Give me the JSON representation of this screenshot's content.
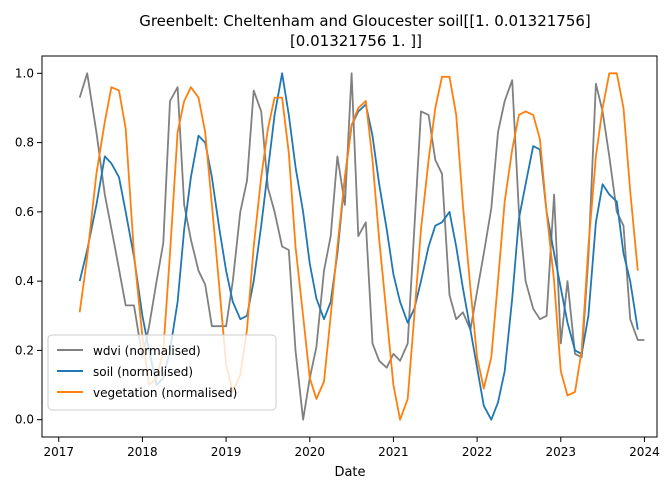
{
  "chart_data": {
    "type": "line",
    "title_line1": "Greenbelt: Cheltenham and Gloucester soil[[1.         0.01321756]",
    "title_line2": "[0.01321756 1.        ]]",
    "xlabel": "Date",
    "ylabel": "",
    "xlim": [
      2016.8,
      2024.15
    ],
    "ylim": [
      -0.05,
      1.05
    ],
    "x_ticks": [
      2017,
      2018,
      2019,
      2020,
      2021,
      2022,
      2023,
      2024
    ],
    "y_ticks": [
      0.0,
      0.2,
      0.4,
      0.6,
      0.8,
      1.0
    ],
    "grid": false,
    "legend_position": "lower-left",
    "series": [
      {
        "name": "wdvi (normalised)",
        "color": "#808080",
        "points": [
          [
            2017.25,
            0.93
          ],
          [
            2017.34,
            1.0
          ],
          [
            2017.45,
            0.83
          ],
          [
            2017.55,
            0.65
          ],
          [
            2017.67,
            0.5
          ],
          [
            2017.8,
            0.33
          ],
          [
            2017.9,
            0.33
          ],
          [
            2018.0,
            0.18
          ],
          [
            2018.08,
            0.27
          ],
          [
            2018.17,
            0.4
          ],
          [
            2018.25,
            0.51
          ],
          [
            2018.33,
            0.92
          ],
          [
            2018.42,
            0.96
          ],
          [
            2018.5,
            0.62
          ],
          [
            2018.58,
            0.52
          ],
          [
            2018.67,
            0.43
          ],
          [
            2018.75,
            0.39
          ],
          [
            2018.83,
            0.27
          ],
          [
            2018.92,
            0.27
          ],
          [
            2019.0,
            0.27
          ],
          [
            2019.08,
            0.4
          ],
          [
            2019.17,
            0.6
          ],
          [
            2019.25,
            0.69
          ],
          [
            2019.33,
            0.95
          ],
          [
            2019.42,
            0.89
          ],
          [
            2019.5,
            0.67
          ],
          [
            2019.58,
            0.6
          ],
          [
            2019.67,
            0.5
          ],
          [
            2019.75,
            0.49
          ],
          [
            2019.83,
            0.2
          ],
          [
            2019.92,
            0.0
          ],
          [
            2020.0,
            0.12
          ],
          [
            2020.08,
            0.21
          ],
          [
            2020.17,
            0.43
          ],
          [
            2020.25,
            0.53
          ],
          [
            2020.33,
            0.76
          ],
          [
            2020.42,
            0.62
          ],
          [
            2020.5,
            1.0
          ],
          [
            2020.58,
            0.53
          ],
          [
            2020.67,
            0.57
          ],
          [
            2020.75,
            0.22
          ],
          [
            2020.83,
            0.17
          ],
          [
            2020.92,
            0.15
          ],
          [
            2021.0,
            0.19
          ],
          [
            2021.08,
            0.17
          ],
          [
            2021.17,
            0.22
          ],
          [
            2021.25,
            0.55
          ],
          [
            2021.33,
            0.89
          ],
          [
            2021.42,
            0.88
          ],
          [
            2021.5,
            0.75
          ],
          [
            2021.58,
            0.71
          ],
          [
            2021.67,
            0.36
          ],
          [
            2021.75,
            0.29
          ],
          [
            2021.83,
            0.31
          ],
          [
            2021.92,
            0.26
          ],
          [
            2022.0,
            0.37
          ],
          [
            2022.08,
            0.48
          ],
          [
            2022.17,
            0.61
          ],
          [
            2022.25,
            0.83
          ],
          [
            2022.33,
            0.92
          ],
          [
            2022.42,
            0.98
          ],
          [
            2022.5,
            0.6
          ],
          [
            2022.58,
            0.4
          ],
          [
            2022.67,
            0.32
          ],
          [
            2022.75,
            0.29
          ],
          [
            2022.83,
            0.3
          ],
          [
            2022.92,
            0.65
          ],
          [
            2023.0,
            0.22
          ],
          [
            2023.08,
            0.4
          ],
          [
            2023.17,
            0.19
          ],
          [
            2023.25,
            0.18
          ],
          [
            2023.33,
            0.47
          ],
          [
            2023.42,
            0.97
          ],
          [
            2023.5,
            0.89
          ],
          [
            2023.58,
            0.76
          ],
          [
            2023.67,
            0.6
          ],
          [
            2023.75,
            0.56
          ],
          [
            2023.83,
            0.29
          ],
          [
            2023.92,
            0.23
          ],
          [
            2024.0,
            0.23
          ]
        ]
      },
      {
        "name": "soil (normalised)",
        "color": "#1f77b4",
        "points": [
          [
            2017.25,
            0.4
          ],
          [
            2017.34,
            0.49
          ],
          [
            2017.45,
            0.62
          ],
          [
            2017.55,
            0.76
          ],
          [
            2017.63,
            0.74
          ],
          [
            2017.72,
            0.7
          ],
          [
            2017.8,
            0.6
          ],
          [
            2017.9,
            0.47
          ],
          [
            2018.0,
            0.3
          ],
          [
            2018.08,
            0.2
          ],
          [
            2018.17,
            0.1
          ],
          [
            2018.25,
            0.12
          ],
          [
            2018.33,
            0.2
          ],
          [
            2018.42,
            0.34
          ],
          [
            2018.5,
            0.55
          ],
          [
            2018.58,
            0.7
          ],
          [
            2018.67,
            0.82
          ],
          [
            2018.75,
            0.8
          ],
          [
            2018.83,
            0.7
          ],
          [
            2018.92,
            0.55
          ],
          [
            2019.0,
            0.43
          ],
          [
            2019.08,
            0.34
          ],
          [
            2019.17,
            0.29
          ],
          [
            2019.25,
            0.3
          ],
          [
            2019.33,
            0.4
          ],
          [
            2019.42,
            0.56
          ],
          [
            2019.5,
            0.72
          ],
          [
            2019.58,
            0.88
          ],
          [
            2019.67,
            1.0
          ],
          [
            2019.75,
            0.88
          ],
          [
            2019.83,
            0.73
          ],
          [
            2019.92,
            0.6
          ],
          [
            2020.0,
            0.45
          ],
          [
            2020.08,
            0.35
          ],
          [
            2020.17,
            0.29
          ],
          [
            2020.25,
            0.34
          ],
          [
            2020.33,
            0.48
          ],
          [
            2020.42,
            0.7
          ],
          [
            2020.5,
            0.85
          ],
          [
            2020.58,
            0.89
          ],
          [
            2020.67,
            0.91
          ],
          [
            2020.75,
            0.82
          ],
          [
            2020.83,
            0.68
          ],
          [
            2020.92,
            0.55
          ],
          [
            2021.0,
            0.42
          ],
          [
            2021.08,
            0.34
          ],
          [
            2021.17,
            0.28
          ],
          [
            2021.25,
            0.32
          ],
          [
            2021.33,
            0.4
          ],
          [
            2021.42,
            0.5
          ],
          [
            2021.5,
            0.56
          ],
          [
            2021.58,
            0.57
          ],
          [
            2021.67,
            0.6
          ],
          [
            2021.75,
            0.5
          ],
          [
            2021.83,
            0.38
          ],
          [
            2021.92,
            0.26
          ],
          [
            2022.0,
            0.15
          ],
          [
            2022.08,
            0.04
          ],
          [
            2022.17,
            0.0
          ],
          [
            2022.25,
            0.05
          ],
          [
            2022.33,
            0.14
          ],
          [
            2022.42,
            0.35
          ],
          [
            2022.5,
            0.58
          ],
          [
            2022.58,
            0.68
          ],
          [
            2022.67,
            0.79
          ],
          [
            2022.75,
            0.78
          ],
          [
            2022.83,
            0.6
          ],
          [
            2022.92,
            0.48
          ],
          [
            2023.0,
            0.38
          ],
          [
            2023.08,
            0.28
          ],
          [
            2023.17,
            0.2
          ],
          [
            2023.25,
            0.19
          ],
          [
            2023.33,
            0.3
          ],
          [
            2023.42,
            0.57
          ],
          [
            2023.5,
            0.68
          ],
          [
            2023.58,
            0.65
          ],
          [
            2023.67,
            0.63
          ],
          [
            2023.75,
            0.48
          ],
          [
            2023.83,
            0.4
          ],
          [
            2023.92,
            0.26
          ]
        ]
      },
      {
        "name": "vegetation (normalised)",
        "color": "#ff7f0e",
        "points": [
          [
            2017.25,
            0.31
          ],
          [
            2017.34,
            0.47
          ],
          [
            2017.45,
            0.71
          ],
          [
            2017.55,
            0.86
          ],
          [
            2017.63,
            0.96
          ],
          [
            2017.72,
            0.95
          ],
          [
            2017.8,
            0.84
          ],
          [
            2017.9,
            0.48
          ],
          [
            2018.0,
            0.24
          ],
          [
            2018.08,
            0.1
          ],
          [
            2018.17,
            0.12
          ],
          [
            2018.25,
            0.2
          ],
          [
            2018.33,
            0.48
          ],
          [
            2018.42,
            0.83
          ],
          [
            2018.5,
            0.92
          ],
          [
            2018.58,
            0.96
          ],
          [
            2018.67,
            0.93
          ],
          [
            2018.75,
            0.83
          ],
          [
            2018.83,
            0.62
          ],
          [
            2018.92,
            0.38
          ],
          [
            2019.0,
            0.16
          ],
          [
            2019.08,
            0.08
          ],
          [
            2019.17,
            0.13
          ],
          [
            2019.25,
            0.26
          ],
          [
            2019.33,
            0.5
          ],
          [
            2019.42,
            0.7
          ],
          [
            2019.5,
            0.84
          ],
          [
            2019.58,
            0.93
          ],
          [
            2019.67,
            0.93
          ],
          [
            2019.75,
            0.77
          ],
          [
            2019.83,
            0.5
          ],
          [
            2019.92,
            0.3
          ],
          [
            2020.0,
            0.12
          ],
          [
            2020.08,
            0.06
          ],
          [
            2020.17,
            0.11
          ],
          [
            2020.25,
            0.3
          ],
          [
            2020.33,
            0.5
          ],
          [
            2020.42,
            0.7
          ],
          [
            2020.5,
            0.85
          ],
          [
            2020.58,
            0.9
          ],
          [
            2020.67,
            0.92
          ],
          [
            2020.75,
            0.75
          ],
          [
            2020.83,
            0.52
          ],
          [
            2020.92,
            0.3
          ],
          [
            2021.0,
            0.1
          ],
          [
            2021.08,
            0.0
          ],
          [
            2021.17,
            0.06
          ],
          [
            2021.25,
            0.3
          ],
          [
            2021.33,
            0.55
          ],
          [
            2021.42,
            0.75
          ],
          [
            2021.5,
            0.9
          ],
          [
            2021.58,
            0.99
          ],
          [
            2021.67,
            0.99
          ],
          [
            2021.75,
            0.88
          ],
          [
            2021.83,
            0.62
          ],
          [
            2021.92,
            0.38
          ],
          [
            2022.0,
            0.18
          ],
          [
            2022.08,
            0.09
          ],
          [
            2022.17,
            0.18
          ],
          [
            2022.25,
            0.4
          ],
          [
            2022.33,
            0.63
          ],
          [
            2022.42,
            0.78
          ],
          [
            2022.5,
            0.88
          ],
          [
            2022.58,
            0.89
          ],
          [
            2022.67,
            0.88
          ],
          [
            2022.75,
            0.81
          ],
          [
            2022.83,
            0.6
          ],
          [
            2022.92,
            0.4
          ],
          [
            2023.0,
            0.14
          ],
          [
            2023.08,
            0.07
          ],
          [
            2023.17,
            0.08
          ],
          [
            2023.25,
            0.2
          ],
          [
            2023.33,
            0.5
          ],
          [
            2023.42,
            0.76
          ],
          [
            2023.5,
            0.9
          ],
          [
            2023.58,
            1.0
          ],
          [
            2023.67,
            1.0
          ],
          [
            2023.75,
            0.9
          ],
          [
            2023.83,
            0.66
          ],
          [
            2023.92,
            0.43
          ]
        ]
      }
    ]
  }
}
